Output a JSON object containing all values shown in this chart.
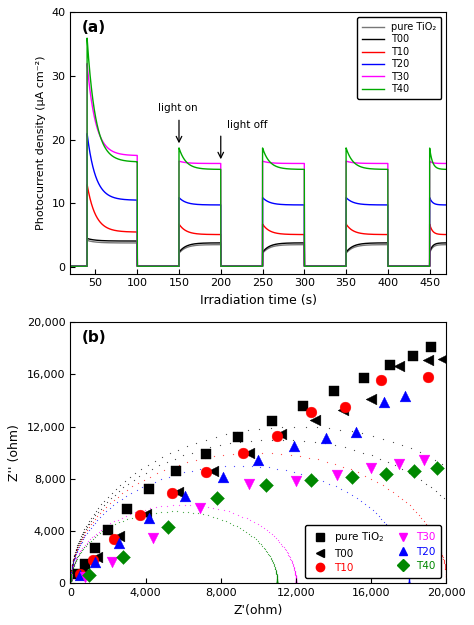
{
  "panel_a": {
    "title": "(a)",
    "xlabel": "Irradiation time (s)",
    "ylabel": "Photocurrent density (μA cm⁻²)",
    "xlim": [
      20,
      470
    ],
    "ylim": [
      -1,
      40
    ],
    "yticks": [
      0,
      10,
      20,
      30,
      40
    ],
    "xticks": [
      50,
      100,
      150,
      200,
      250,
      300,
      350,
      400,
      450
    ],
    "light_on_x": 150,
    "light_off_x": 200,
    "series": {
      "pure_TiO2": {
        "color": "#777777",
        "peak": 4.2,
        "steady": 3.8,
        "off_val": 0.15,
        "lw": 1.0
      },
      "T00": {
        "color": "#000000",
        "peak": 4.5,
        "steady": 4.1,
        "off_val": 0.15,
        "lw": 1.0
      },
      "T10": {
        "color": "#ff0000",
        "peak": 13.0,
        "steady": 5.5,
        "off_val": 0.15,
        "lw": 1.0
      },
      "T20": {
        "color": "#0000ff",
        "peak": 21.0,
        "steady": 10.5,
        "off_val": 0.15,
        "lw": 1.0
      },
      "T30": {
        "color": "#ff00ff",
        "peak": 32.0,
        "steady": 17.5,
        "off_val": 0.15,
        "lw": 1.0
      },
      "T40": {
        "color": "#00aa00",
        "peak": 36.0,
        "steady": 16.5,
        "off_val": 0.15,
        "lw": 1.0
      }
    },
    "on_periods": [
      [
        40,
        100
      ],
      [
        150,
        200
      ],
      [
        250,
        300
      ],
      [
        350,
        400
      ],
      [
        450,
        470
      ]
    ],
    "off_periods": [
      [
        20,
        40
      ],
      [
        100,
        150
      ],
      [
        200,
        250
      ],
      [
        300,
        350
      ],
      [
        400,
        450
      ]
    ],
    "legend_labels": [
      "pure TiO₂",
      "T00",
      "T10",
      "T20",
      "T30",
      "T40"
    ],
    "legend_colors": [
      "#777777",
      "#000000",
      "#ff0000",
      "#0000ff",
      "#ff00ff",
      "#00aa00"
    ]
  },
  "panel_b": {
    "title": "(b)",
    "xlabel": "Z'(ohm)",
    "ylabel": "Z'' (ohm)",
    "xlim": [
      0,
      20000
    ],
    "ylim": [
      0,
      20000
    ],
    "xticks": [
      0,
      4000,
      8000,
      12000,
      16000,
      20000
    ],
    "yticks": [
      0,
      4000,
      8000,
      12000,
      16000,
      20000
    ],
    "xtick_labels": [
      "0",
      "4,000",
      "8,000",
      "12,000",
      "16,000",
      "20,000"
    ],
    "ytick_labels": [
      "0",
      "4,000",
      "8,000",
      "12,000",
      "16,000",
      "20,000"
    ],
    "dense_series": {
      "pure_TiO2": {
        "color": "#000000",
        "R_s": 10,
        "R_ct": 24000,
        "tau": 0.00012
      },
      "T00": {
        "color": "#000000",
        "R_s": 10,
        "R_ct": 22000,
        "tau": 0.00011
      },
      "T10": {
        "color": "#ff0000",
        "R_s": 10,
        "R_ct": 20000,
        "tau": 0.0001
      },
      "T20": {
        "color": "#0000ff",
        "R_s": 10,
        "R_ct": 18000,
        "tau": 9e-05
      },
      "T30": {
        "color": "#ff00ff",
        "R_s": 10,
        "R_ct": 12000,
        "tau": 7e-05
      },
      "T40": {
        "color": "#008800",
        "R_s": 10,
        "R_ct": 11000,
        "tau": 6.5e-05
      }
    },
    "scatter": {
      "pure_TiO2": {
        "color": "#000000",
        "marker": "s",
        "ms": 55,
        "x": [
          400,
          800,
          1300,
          2000,
          3000,
          4200,
          5600,
          7200,
          8900,
          10700,
          12400,
          14000,
          15600,
          17000,
          18200,
          19200
        ],
        "y": [
          700,
          1500,
          2700,
          4100,
          5700,
          7200,
          8600,
          9900,
          11200,
          12400,
          13600,
          14700,
          15700,
          16700,
          17400,
          18100
        ]
      },
      "T00": {
        "color": "#000000",
        "marker": "<",
        "ms": 60,
        "x": [
          600,
          1400,
          2600,
          4000,
          5700,
          7600,
          9500,
          11200,
          13000,
          14500,
          16000,
          17500,
          19000,
          19800
        ],
        "y": [
          900,
          2000,
          3600,
          5300,
          7000,
          8600,
          10000,
          11400,
          12500,
          13300,
          14100,
          16600,
          17100,
          17200
        ]
      },
      "T10": {
        "color": "#ff0000",
        "marker": "o",
        "ms": 60,
        "x": [
          500,
          1200,
          2300,
          3700,
          5400,
          7200,
          9200,
          11000,
          12800,
          14600,
          16500,
          19000
        ],
        "y": [
          700,
          1800,
          3400,
          5200,
          6900,
          8500,
          10000,
          11300,
          13100,
          13500,
          15600,
          15800
        ]
      },
      "T20": {
        "color": "#0000ff",
        "marker": "^",
        "ms": 60,
        "x": [
          500,
          1300,
          2600,
          4200,
          6100,
          8100,
          10000,
          11900,
          13600,
          15200,
          16700,
          17800
        ],
        "y": [
          600,
          1600,
          3100,
          5000,
          6700,
          8100,
          9400,
          10500,
          11100,
          11600,
          13900,
          14300
        ]
      },
      "T30": {
        "color": "#ff00ff",
        "marker": "v",
        "ms": 60,
        "x": [
          800,
          2200,
          4400,
          6900,
          9500,
          12000,
          14200,
          16000,
          17500,
          18800
        ],
        "y": [
          500,
          1600,
          3500,
          5800,
          7600,
          7800,
          8300,
          8800,
          9100,
          9400
        ]
      },
      "T40": {
        "color": "#008800",
        "marker": "D",
        "ms": 50,
        "x": [
          1000,
          2800,
          5200,
          7800,
          10400,
          12800,
          15000,
          16800,
          18300,
          19500
        ],
        "y": [
          600,
          2000,
          4300,
          6500,
          7500,
          7900,
          8100,
          8400,
          8600,
          8800
        ]
      }
    },
    "legend_order": [
      "pure_TiO2",
      "T00",
      "T10",
      "T30",
      "T20",
      "T40"
    ],
    "legend_labels": [
      "pure TiO$_2$",
      "T00",
      "T10",
      "T30",
      "T20",
      "T40"
    ],
    "legend_colors": [
      "#000000",
      "#000000",
      "#ff0000",
      "#ff00ff",
      "#0000ff",
      "#008800"
    ],
    "legend_markers": [
      "s",
      "<",
      "o",
      "v",
      "^",
      "D"
    ]
  }
}
